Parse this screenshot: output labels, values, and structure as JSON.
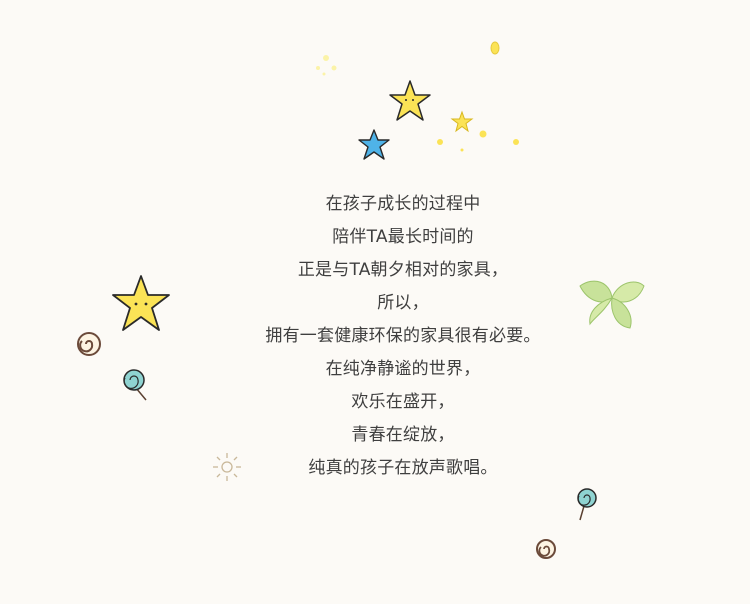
{
  "poem": {
    "lines": [
      "在孩子成长的过程中",
      "陪伴TA最长时间的",
      "正是与TA朝夕相对的家具，",
      "所以，",
      "拥有一套健康环保的家具很有必要。",
      "在纯净静谧的世界，",
      "欢乐在盛开，",
      "青春在绽放，",
      "纯真的孩子在放声歌唱。"
    ]
  },
  "decorations": {
    "colors": {
      "background": "#fcfaf6",
      "text": "#3f3f3f",
      "star_yellow": "#fbe356",
      "star_outline": "#2a2a2a",
      "star_blue": "#4fb3e8",
      "leaf_green": "#c8e29a",
      "lollipop_teal": "#8fd3d1",
      "spiral_brown": "#6b4a3a"
    }
  }
}
